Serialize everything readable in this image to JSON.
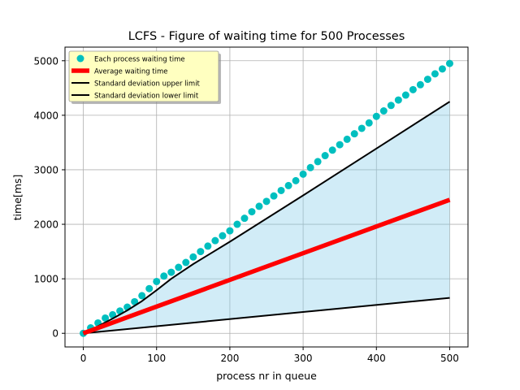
{
  "chart_data": {
    "type": "line",
    "title": "LCFS - Figure of waiting time for 500 Processes",
    "xlabel": "process nr in queue",
    "ylabel": "time[ms]",
    "xlim": [
      -25,
      525
    ],
    "ylim": [
      -250,
      5250
    ],
    "xticks": [
      0,
      100,
      200,
      300,
      400,
      500
    ],
    "yticks": [
      0,
      1000,
      2000,
      3000,
      4000,
      5000
    ],
    "grid": true,
    "legend_position": "top-left",
    "shaded_band": {
      "between": [
        "Standard deviation lower limit",
        "Standard deviation upper limit"
      ],
      "color": "#87ceeb"
    },
    "series": [
      {
        "name": "Each process waiting time",
        "kind": "scatter",
        "color": "#00bfbf",
        "x": [
          0,
          10,
          20,
          30,
          40,
          50,
          60,
          70,
          80,
          90,
          100,
          110,
          120,
          130,
          140,
          150,
          160,
          170,
          180,
          190,
          200,
          210,
          220,
          230,
          240,
          250,
          260,
          270,
          280,
          290,
          300,
          310,
          320,
          330,
          340,
          350,
          360,
          370,
          380,
          390,
          400,
          410,
          420,
          430,
          440,
          450,
          460,
          470,
          480,
          490,
          500
        ],
        "values": [
          0,
          100,
          190,
          280,
          340,
          410,
          480,
          580,
          690,
          820,
          950,
          1050,
          1120,
          1210,
          1300,
          1400,
          1500,
          1600,
          1700,
          1790,
          1880,
          2000,
          2110,
          2230,
          2330,
          2420,
          2520,
          2620,
          2710,
          2800,
          2920,
          3040,
          3150,
          3260,
          3360,
          3460,
          3560,
          3660,
          3760,
          3860,
          3980,
          4080,
          4180,
          4280,
          4370,
          4470,
          4560,
          4660,
          4760,
          4850,
          4950
        ]
      },
      {
        "name": "Average waiting time",
        "kind": "line",
        "color": "#ff0000",
        "x": [
          0,
          500
        ],
        "values": [
          0,
          2450
        ]
      },
      {
        "name": "Standard deviation upper limit",
        "kind": "line",
        "color": "#000000",
        "x": [
          0,
          20,
          40,
          60,
          80,
          100,
          120,
          150,
          200,
          300,
          400,
          500
        ],
        "values": [
          0,
          130,
          270,
          420,
          590,
          790,
          1000,
          1270,
          1680,
          2530,
          3390,
          4250
        ]
      },
      {
        "name": "Standard deviation lower limit",
        "kind": "line",
        "color": "#000000",
        "x": [
          0,
          500
        ],
        "values": [
          0,
          650
        ]
      }
    ]
  }
}
